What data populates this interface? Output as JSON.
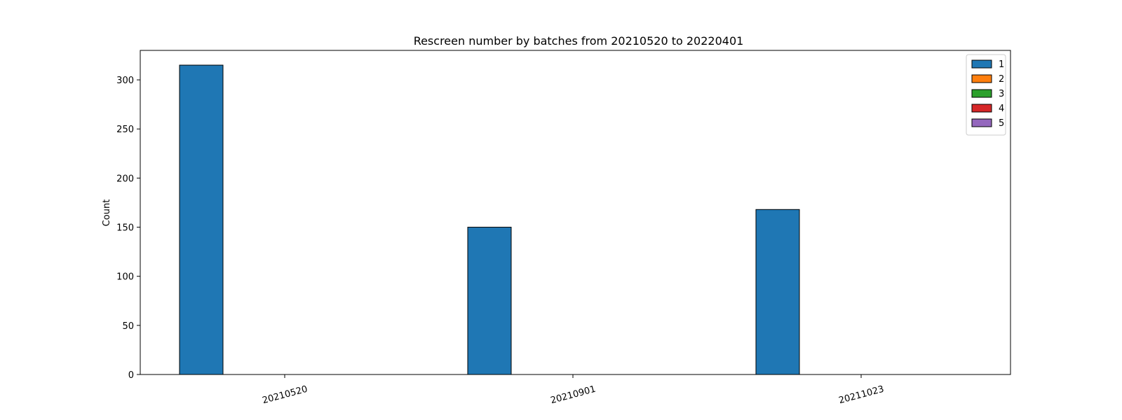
{
  "chart_data": {
    "type": "bar",
    "title": "Rescreen number  by batches from 20210520 to 20220401",
    "xlabel": "",
    "ylabel": "Count",
    "categories": [
      "20210520",
      "20210901",
      "20211023"
    ],
    "series": [
      {
        "name": "1",
        "values": [
          315,
          150,
          168
        ],
        "color": "#1f77b4"
      },
      {
        "name": "2",
        "values": [
          0,
          0,
          0
        ],
        "color": "#ff7f0e"
      },
      {
        "name": "3",
        "values": [
          0,
          0,
          0
        ],
        "color": "#2ca02c"
      },
      {
        "name": "4",
        "values": [
          0,
          0,
          0
        ],
        "color": "#d62728"
      },
      {
        "name": "5",
        "values": [
          0,
          0,
          0
        ],
        "color": "#9467bd"
      }
    ],
    "ylim": [
      0,
      330
    ],
    "yticks": [
      0,
      50,
      100,
      150,
      200,
      250,
      300
    ],
    "xtick_rotation_deg": -15,
    "grid": false,
    "legend_position": "top-right"
  }
}
